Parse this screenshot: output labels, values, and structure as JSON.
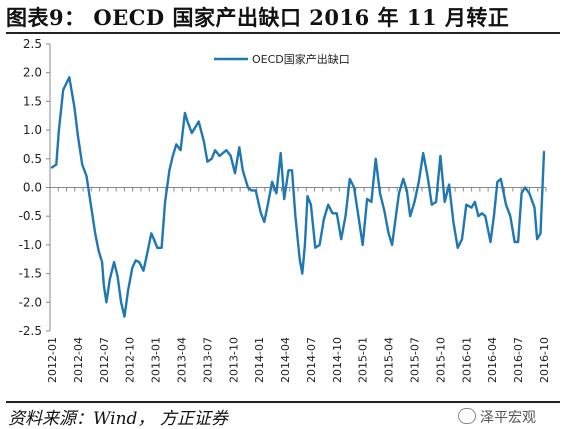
{
  "header": {
    "title": "图表9：  OECD 国家产出缺口 2016 年 11 月转正"
  },
  "footer": {
    "source": "资料来源：Wind， 方正证券",
    "watermark": "泽平宏观"
  },
  "chart_data": {
    "type": "line",
    "title": "图表9：  OECD 国家产出缺口 2016 年 11 月转正",
    "xlabel": "",
    "ylabel": "",
    "ylim": [
      -2.5,
      2.5
    ],
    "yticks": [
      "2.5",
      "2.0",
      "1.5",
      "1.0",
      "0.5",
      "0.0",
      "-0.5",
      "-1.0",
      "-1.5",
      "-2.0",
      "-2.5"
    ],
    "categories": [
      "2012-01",
      "2012-04",
      "2012-07",
      "2012-10",
      "2013-01",
      "2013-04",
      "2013-07",
      "2013-10",
      "2014-01",
      "2014-04",
      "2014-07",
      "2014-10",
      "2015-01",
      "2015-04",
      "2015-07",
      "2015-10",
      "2016-01",
      "2016-04",
      "2016-07",
      "2016-10"
    ],
    "legend_position": "top",
    "grid": false,
    "series": [
      {
        "name": "OECD国家产出缺口",
        "color": "#1f77b4",
        "x": [
          0,
          0.5,
          0.8,
          1.3,
          2,
          2.6,
          3,
          3.5,
          4,
          5,
          5.4,
          5.8,
          6,
          6.3,
          6.7,
          7.2,
          7.6,
          8,
          8.4,
          8.8,
          9.3,
          9.7,
          10.1,
          10.6,
          11.1,
          11.5,
          11.8,
          12.2,
          12.7,
          13.1,
          13.6,
          14,
          14.4,
          14.9,
          15.4,
          15.7,
          16.2,
          16.6,
          17,
          17.6,
          18,
          18.5,
          18.9,
          19.4,
          19.8,
          20.2,
          20.7,
          21.2,
          21.7,
          22.1,
          22.7,
          23.1,
          23.6,
          24.2,
          24.6,
          25,
          25.5,
          26,
          26.5,
          26.9,
          27.4,
          27.8,
          28.2,
          28.7,
          29,
          29.3,
          29.6,
          30,
          30.5,
          31,
          31.5,
          32,
          32.5,
          33,
          33.5,
          34,
          34.5,
          35,
          35.5,
          36,
          36.5,
          37,
          37.5,
          38,
          38.5,
          39,
          39.4,
          39.8,
          40.2,
          40.7,
          41.1,
          41.5,
          42,
          42.5,
          43,
          43.5,
          44,
          44.5,
          45,
          45.5,
          46,
          46.5,
          47,
          47.5,
          48,
          48.6,
          49,
          49.4,
          49.8,
          50.2,
          50.8,
          51.2,
          51.6,
          52,
          52.6,
          53.1,
          53.6,
          54,
          54.4,
          54.8,
          55.3,
          55.9,
          56.2,
          56.6,
          57
        ],
        "y": [
          0.35,
          0.4,
          1.0,
          1.7,
          1.92,
          1.4,
          0.9,
          0.4,
          0.2,
          -0.8,
          -1.1,
          -1.3,
          -1.7,
          -2.0,
          -1.6,
          -1.3,
          -1.55,
          -2.0,
          -2.25,
          -1.8,
          -1.4,
          -1.27,
          -1.3,
          -1.45,
          -1.1,
          -0.8,
          -0.9,
          -1.05,
          -1.05,
          -0.25,
          0.3,
          0.55,
          0.75,
          0.65,
          1.3,
          1.15,
          0.95,
          1.05,
          1.15,
          0.8,
          0.45,
          0.5,
          0.65,
          0.55,
          0.6,
          0.65,
          0.55,
          0.25,
          0.7,
          0.3,
          0.0,
          -0.05,
          -0.05,
          -0.45,
          -0.6,
          -0.3,
          0.1,
          -0.1,
          0.6,
          -0.2,
          0.3,
          0.3,
          -0.5,
          -1.25,
          -1.5,
          -1.0,
          -0.15,
          -0.3,
          -1.05,
          -1.0,
          -0.55,
          -0.3,
          -0.45,
          -0.45,
          -0.9,
          -0.5,
          0.15,
          0.0,
          -0.5,
          -1.0,
          -0.2,
          -0.25,
          0.5,
          -0.1,
          -0.4,
          -0.8,
          -1.0,
          -0.55,
          -0.1,
          0.15,
          -0.05,
          -0.5,
          -0.25,
          0.1,
          0.6,
          0.2,
          -0.3,
          -0.25,
          0.55,
          -0.25,
          0.05,
          -0.6,
          -1.05,
          -0.9,
          -0.3,
          -0.35,
          -0.25,
          -0.5,
          -0.45,
          -0.5,
          -0.95,
          -0.5,
          0.1,
          0.15,
          -0.3,
          -0.5,
          -0.95,
          -0.95,
          -0.1,
          0.0,
          -0.1,
          -0.35,
          -0.9,
          -0.8,
          0.62
        ]
      }
    ]
  }
}
